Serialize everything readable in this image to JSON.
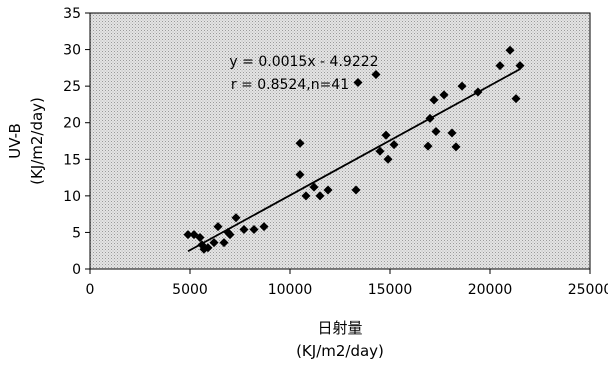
{
  "chart_data": {
    "type": "scatter",
    "title": "",
    "xlabel": "日射量",
    "xlabel_unit": "(KJ/m2/day)",
    "ylabel": "UV-B",
    "ylabel_unit": "(KJ/m2/day)",
    "xlim": [
      0,
      25000
    ],
    "ylim": [
      0,
      35
    ],
    "xticks": [
      0,
      5000,
      10000,
      15000,
      20000,
      25000
    ],
    "yticks": [
      0,
      5,
      10,
      15,
      20,
      25,
      30,
      35
    ],
    "grid": false,
    "legend": "none",
    "plot_background": "#d8d8d8",
    "marker": "diamond",
    "marker_color": "#000000",
    "points": [
      [
        4900,
        4.7
      ],
      [
        5200,
        4.7
      ],
      [
        5500,
        4.3
      ],
      [
        5600,
        3.3
      ],
      [
        5700,
        2.7
      ],
      [
        5900,
        2.9
      ],
      [
        6200,
        3.6
      ],
      [
        6400,
        5.8
      ],
      [
        6700,
        3.6
      ],
      [
        6900,
        5.0
      ],
      [
        7000,
        4.7
      ],
      [
        7300,
        7.0
      ],
      [
        7700,
        5.4
      ],
      [
        8200,
        5.4
      ],
      [
        8700,
        5.8
      ],
      [
        10500,
        12.9
      ],
      [
        10500,
        17.2
      ],
      [
        10800,
        10.0
      ],
      [
        11200,
        11.2
      ],
      [
        11500,
        10.0
      ],
      [
        11900,
        10.8
      ],
      [
        13300,
        10.8
      ],
      [
        13400,
        25.5
      ],
      [
        14300,
        26.6
      ],
      [
        14500,
        16.1
      ],
      [
        14800,
        18.3
      ],
      [
        14900,
        15.0
      ],
      [
        15200,
        17.0
      ],
      [
        16900,
        16.8
      ],
      [
        17000,
        20.6
      ],
      [
        17200,
        23.1
      ],
      [
        17300,
        18.8
      ],
      [
        17700,
        23.8
      ],
      [
        18100,
        18.6
      ],
      [
        18300,
        16.7
      ],
      [
        18600,
        25.0
      ],
      [
        19400,
        24.2
      ],
      [
        20500,
        27.8
      ],
      [
        21000,
        29.9
      ],
      [
        21300,
        23.3
      ],
      [
        21500,
        27.8
      ]
    ],
    "trendline": {
      "slope": 0.0015,
      "intercept": -4.9222,
      "x_range": [
        4900,
        21500
      ]
    },
    "annotations": {
      "equation": "y = 0.0015x - 4.9222",
      "stats": "r = 0.8524,n=41"
    }
  }
}
